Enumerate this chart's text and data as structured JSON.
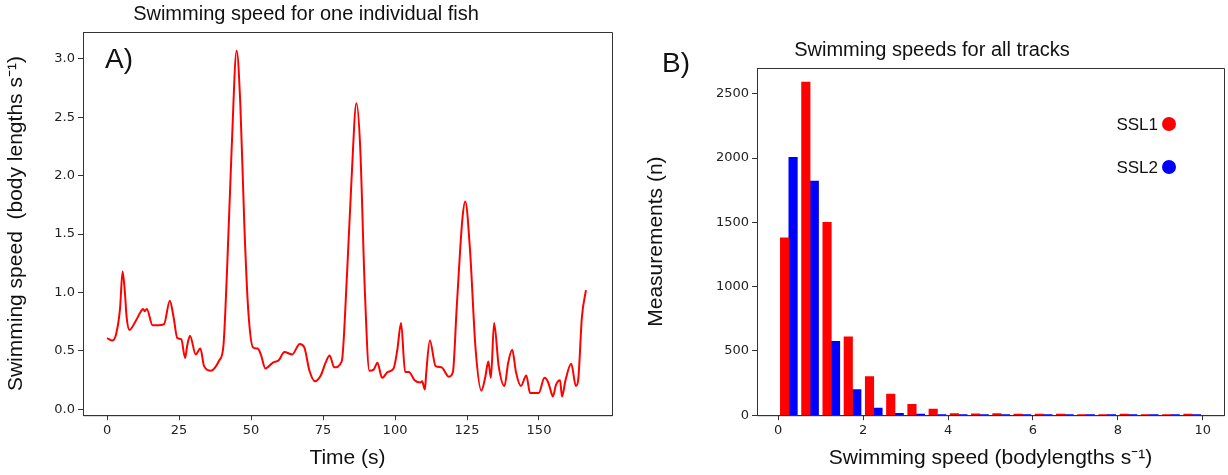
{
  "chart_data": [
    {
      "type": "line",
      "title": "Swimming speed for one individual fish",
      "xlabel": "Time (s)",
      "ylabel": "Swimming speed  (body lengths s⁻¹)",
      "annotations": [
        "A)"
      ],
      "xlim": [
        -8.35,
        175.35
      ],
      "ylim": [
        -0.05,
        3.23
      ],
      "xticks": [
        0,
        25,
        50,
        75,
        100,
        125,
        150
      ],
      "yticks": [
        {
          "value": 0,
          "label": "0.0"
        },
        {
          "value": 0.5,
          "label": "0.5"
        },
        {
          "value": 1,
          "label": "1.0"
        },
        {
          "value": 1.5,
          "label": "1.5"
        },
        {
          "value": 2,
          "label": "2.0"
        },
        {
          "value": 2.5,
          "label": "2.5"
        },
        {
          "value": 3,
          "label": "3.0"
        }
      ],
      "series": [
        {
          "color": "#ff0000",
          "x": [
            0,
            1.9,
            3.2,
            4.5,
            5.4,
            6.2,
            6.8,
            7.8,
            9.8,
            11.8,
            12.5,
            13.1,
            13.8,
            15.8,
            17.8,
            19.8,
            21.8,
            23.1,
            24.4,
            25.8,
            27.1,
            27.8,
            28.8,
            30.8,
            32.4,
            33.7,
            36.1,
            39.0,
            40.4,
            41.7,
            43.3,
            45.0,
            46.3,
            47.7,
            49.0,
            50.7,
            52.3,
            53.4,
            55.0,
            57.6,
            59.6,
            61.6,
            64.3,
            66.9,
            68.5,
            70.3,
            72.2,
            74.2,
            75.9,
            77.3,
            78.9,
            81.5,
            83.3,
            84.9,
            86.6,
            87.9,
            89.5,
            91.1,
            92.6,
            93.9,
            95.5,
            97.5,
            99.5,
            100.8,
            102.1,
            103.5,
            104.8,
            106.8,
            108.8,
            109.4,
            110.4,
            110.8,
            112.1,
            114.1,
            116.1,
            118.7,
            120.1,
            121.4,
            123.4,
            124.4,
            126.0,
            128.0,
            130.0,
            131.3,
            132.4,
            133.3,
            134.4,
            136.0,
            138.0,
            139.3,
            140.7,
            142.0,
            143.7,
            145.6,
            146.9,
            149.9,
            151.9,
            153.2,
            154.3,
            154.8,
            155.9,
            157.3,
            158.0,
            159.2,
            161.2,
            162.8,
            163.6,
            164.9,
            166.3
          ],
          "values": [
            0.61,
            0.59,
            0.65,
            0.86,
            1.18,
            1.0,
            0.79,
            0.68,
            0.75,
            0.84,
            0.86,
            0.84,
            0.86,
            0.72,
            0.72,
            0.73,
            0.93,
            0.79,
            0.61,
            0.6,
            0.44,
            0.54,
            0.63,
            0.47,
            0.52,
            0.37,
            0.33,
            0.42,
            0.54,
            1.21,
            2.25,
            3.07,
            2.6,
            1.56,
            0.86,
            0.53,
            0.52,
            0.47,
            0.35,
            0.4,
            0.42,
            0.49,
            0.47,
            0.56,
            0.53,
            0.33,
            0.24,
            0.29,
            0.4,
            0.46,
            0.36,
            0.41,
            1.14,
            1.97,
            2.62,
            2.25,
            1.03,
            0.33,
            0.34,
            0.4,
            0.27,
            0.32,
            0.35,
            0.51,
            0.74,
            0.32,
            0.32,
            0.25,
            0.23,
            0.24,
            0.17,
            0.3,
            0.59,
            0.37,
            0.36,
            0.28,
            0.32,
            0.86,
            1.63,
            1.78,
            1.38,
            0.51,
            0.16,
            0.27,
            0.41,
            0.27,
            0.74,
            0.37,
            0.2,
            0.4,
            0.51,
            0.32,
            0.2,
            0.29,
            0.14,
            0.14,
            0.27,
            0.23,
            0.14,
            0.11,
            0.21,
            0.25,
            0.11,
            0.25,
            0.39,
            0.2,
            0.25,
            0.79,
            1.02
          ]
        }
      ]
    },
    {
      "type": "histogram",
      "title": "Swimming speeds for all tracks",
      "xlabel": "Swimming speed (bodylengths s⁻¹)",
      "ylabel": "Measurements (n)",
      "annotations": [
        "B)"
      ],
      "xlim": [
        -0.5,
        10.5
      ],
      "ylim": [
        0,
        2700
      ],
      "xticks": [
        0,
        2,
        4,
        6,
        8,
        10
      ],
      "yticks": [
        0,
        500,
        1000,
        1500,
        2000,
        2500
      ],
      "legend": "top right",
      "bins": [
        0,
        0.5,
        1,
        1.5,
        2,
        2.5,
        3,
        3.5,
        4,
        4.5,
        5,
        5.5,
        6,
        6.5,
        7,
        7.5,
        8,
        8.5,
        9,
        9.5,
        10
      ],
      "series": [
        {
          "name": "SSL1",
          "color": "#ff0000",
          "values": [
            1380,
            2590,
            1500,
            610,
            300,
            165,
            85,
            48,
            12,
            10,
            12,
            8,
            8,
            8,
            5,
            5,
            8,
            3,
            3,
            8
          ]
        },
        {
          "name": "SSL2",
          "color": "#0000ff",
          "values": [
            2005,
            1820,
            575,
            200,
            55,
            15,
            8,
            5,
            3,
            3,
            2,
            2,
            3,
            5,
            2,
            2,
            2,
            2,
            2,
            2
          ]
        }
      ]
    }
  ]
}
